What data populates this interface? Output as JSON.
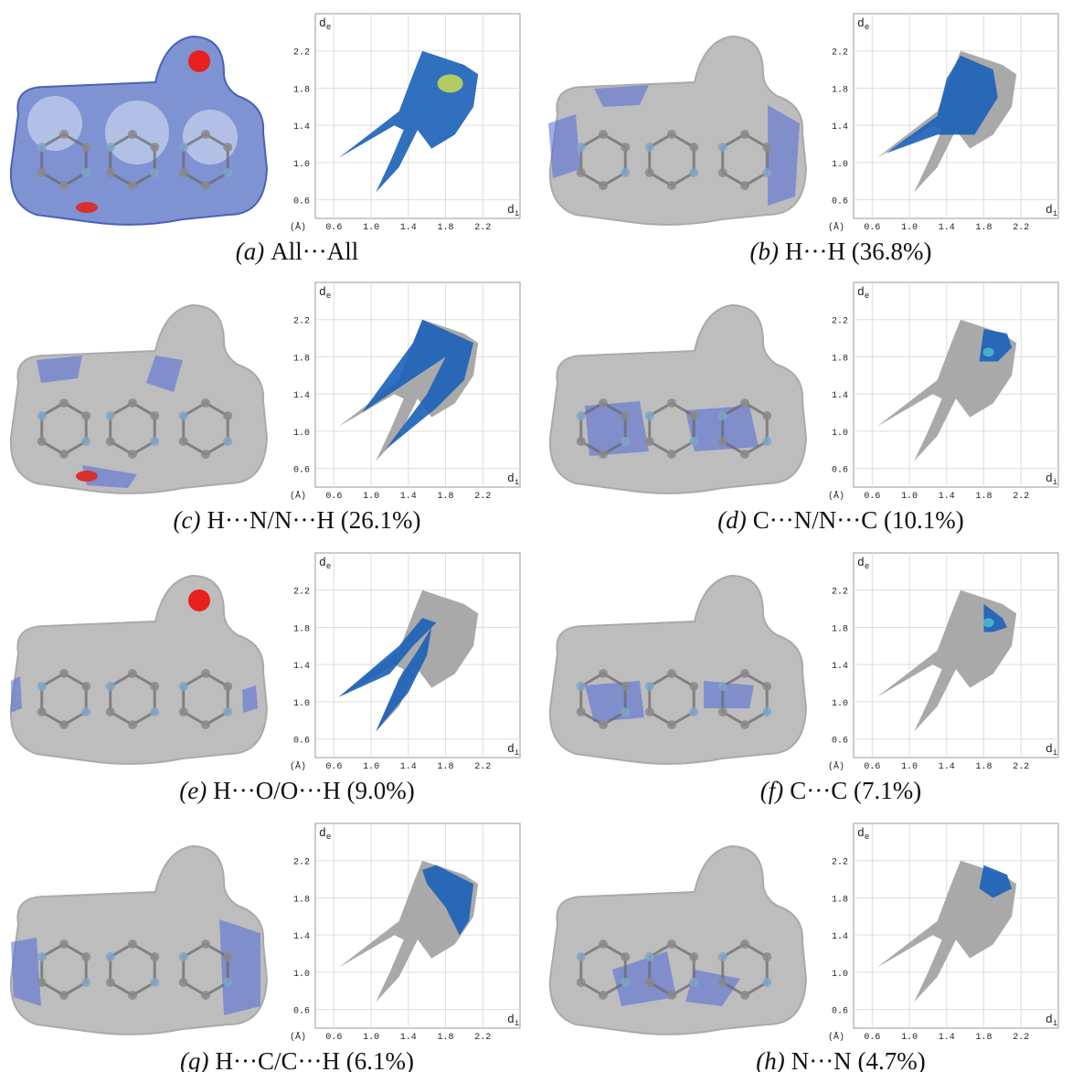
{
  "fingerprint_axes": {
    "unit": "(Å)",
    "x_label": "d",
    "x_sub": "i",
    "y_label": "d",
    "y_sub": "e",
    "xlim": [
      0.4,
      2.6
    ],
    "ylim": [
      0.4,
      2.6
    ],
    "xticks": [
      {
        "value": 0.6,
        "label": "0.6"
      },
      {
        "value": 1,
        "label": "1.0"
      },
      {
        "value": 1.4,
        "label": "1.4"
      },
      {
        "value": 1.8,
        "label": "1.8"
      },
      {
        "value": 2.2,
        "label": "2.2"
      }
    ],
    "yticks": [
      {
        "value": 0.6,
        "label": "0.6"
      },
      {
        "value": 1,
        "label": "1.0"
      },
      {
        "value": 1.4,
        "label": "1.4"
      },
      {
        "value": 1.8,
        "label": "1.8"
      },
      {
        "value": 2.2,
        "label": "2.2"
      }
    ]
  },
  "panels": [
    {
      "label": "(a)",
      "caption": "All···All"
    },
    {
      "label": "(b)",
      "caption": "H···H (36.8%)"
    },
    {
      "label": "(c)",
      "caption": "H···N/N···H (26.1%)"
    },
    {
      "label": "(d)",
      "caption": "C···N/N···C (10.1%)"
    },
    {
      "label": "(e)",
      "caption": "H···O/O···H (9.0%)"
    },
    {
      "label": "(f)",
      "caption": "C···C (7.1%)"
    },
    {
      "label": "(g)",
      "caption": "H···C/C···H (6.1%)"
    },
    {
      "label": "(h)",
      "caption": "N···N (4.7%)"
    }
  ]
}
